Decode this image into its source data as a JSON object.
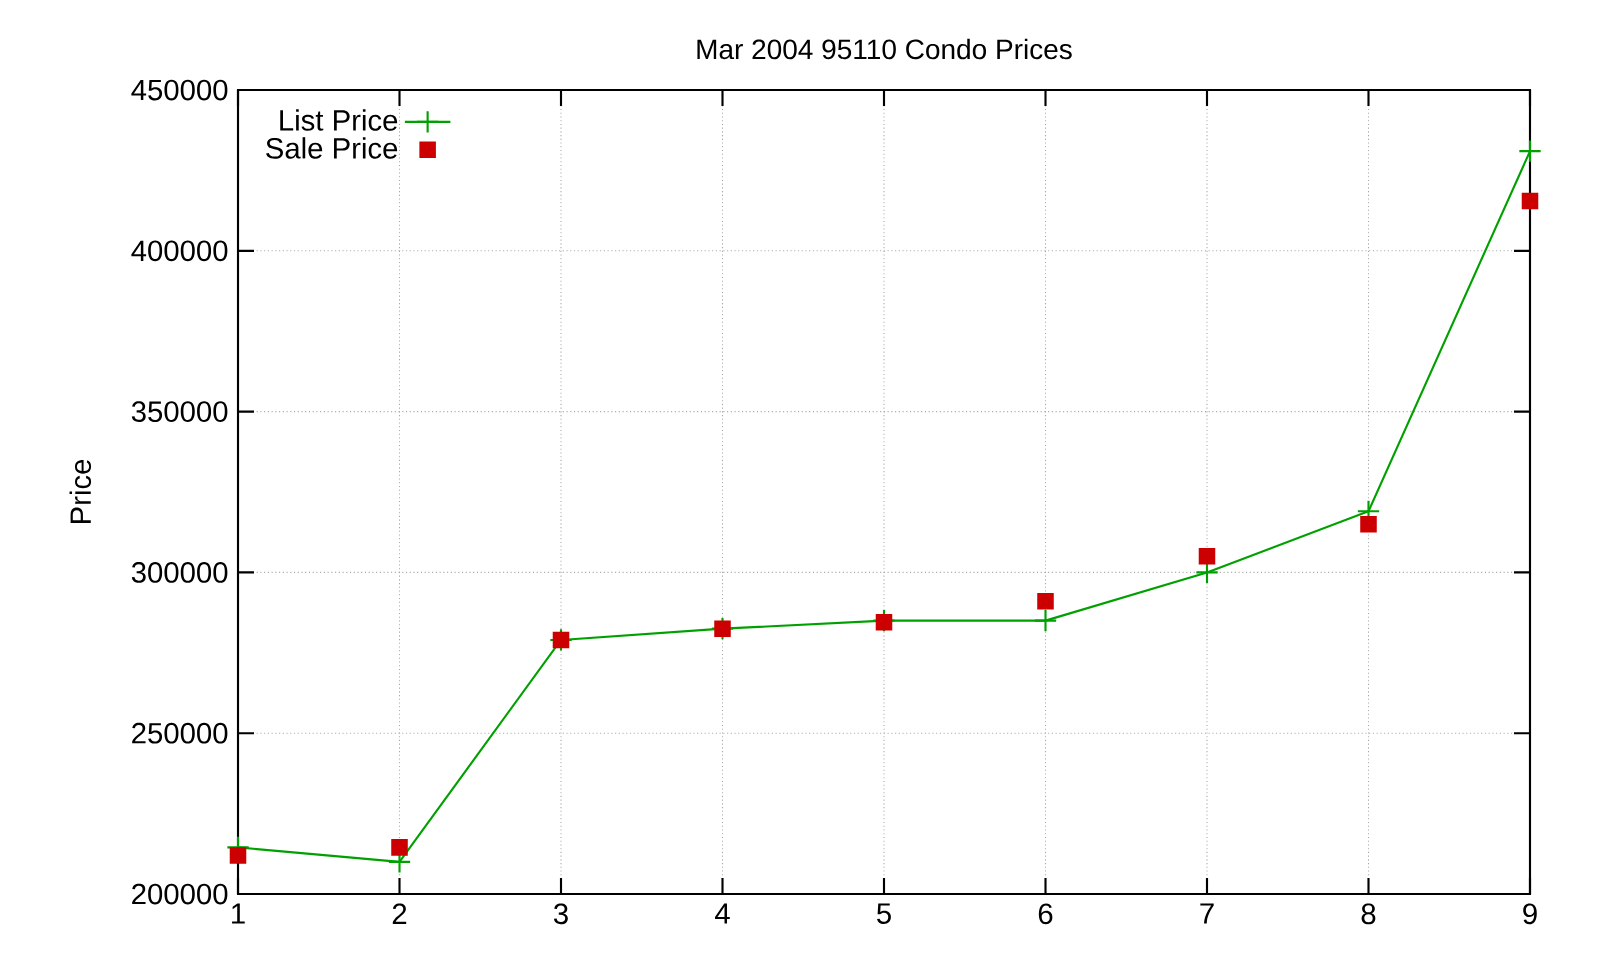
{
  "chart_data": {
    "type": "line",
    "title": "Mar 2004 95110 Condo Prices",
    "ylabel": "Price",
    "x": [
      1,
      2,
      3,
      4,
      5,
      6,
      7,
      8,
      9
    ],
    "series": [
      {
        "name": "List Price",
        "color": "#00a000",
        "marker": "cross",
        "values": [
          214500,
          210000,
          279000,
          282500,
          285000,
          285000,
          300000,
          319000,
          431000
        ]
      },
      {
        "name": "Sale Price",
        "type": "scatter",
        "color": "#cc0000",
        "marker": "square",
        "values": [
          212000,
          214500,
          279000,
          282500,
          284500,
          291000,
          305000,
          315000,
          415500
        ]
      }
    ],
    "xlim": [
      1,
      9
    ],
    "ylim": [
      200000,
      450000
    ],
    "xticks": [
      1,
      2,
      3,
      4,
      5,
      6,
      7,
      8,
      9
    ],
    "yticks": [
      200000,
      250000,
      300000,
      350000,
      400000,
      450000
    ],
    "grid": true,
    "legend": "top left"
  }
}
